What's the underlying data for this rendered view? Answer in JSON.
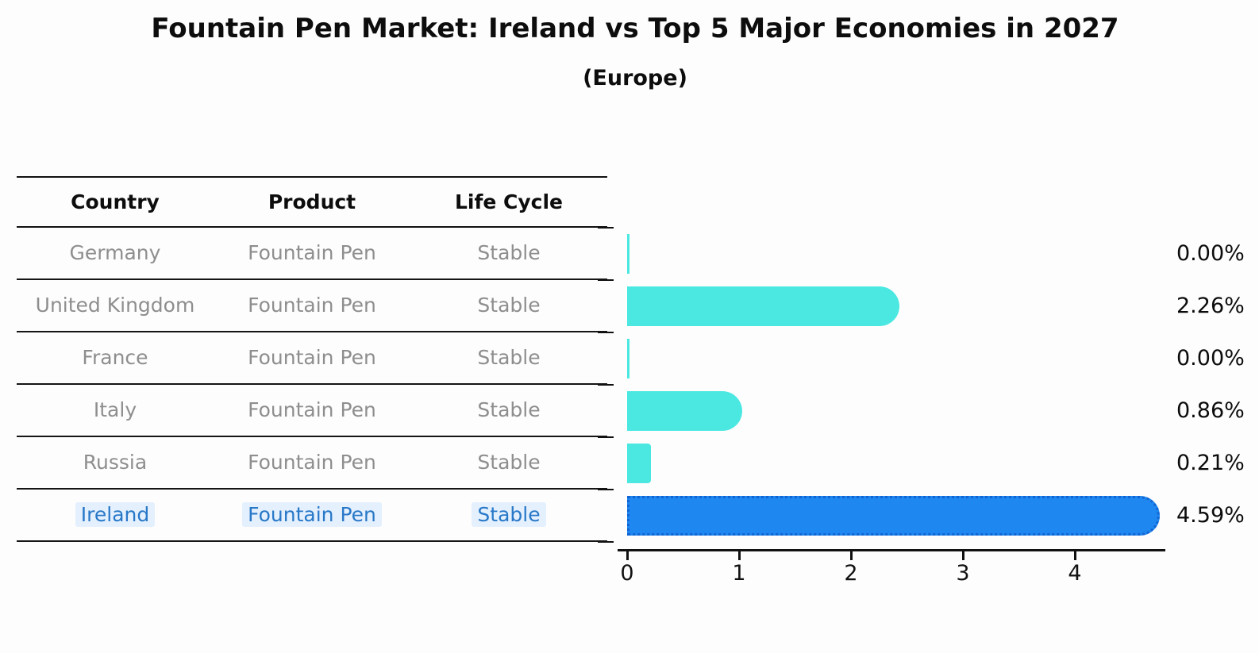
{
  "title": "Fountain Pen Market: Ireland vs Top 5 Major Economies in 2027",
  "subtitle": "(Europe)",
  "table": {
    "headers": [
      "Country",
      "Product",
      "Life Cycle"
    ],
    "rows": [
      {
        "country": "Germany",
        "product": "Fountain Pen",
        "life_cycle": "Stable",
        "highlight": false
      },
      {
        "country": "United Kingdom",
        "product": "Fountain Pen",
        "life_cycle": "Stable",
        "highlight": false
      },
      {
        "country": "France",
        "product": "Fountain Pen",
        "life_cycle": "Stable",
        "highlight": false
      },
      {
        "country": "Italy",
        "product": "Fountain Pen",
        "life_cycle": "Stable",
        "highlight": false
      },
      {
        "country": "Russia",
        "product": "Fountain Pen",
        "life_cycle": "Stable",
        "highlight": false
      },
      {
        "country": "Ireland",
        "product": "Fountain Pen",
        "life_cycle": "Stable",
        "highlight": true
      }
    ]
  },
  "chart_data": {
    "type": "bar",
    "orientation": "horizontal",
    "title": "Fountain Pen Market: Ireland vs Top 5 Major Economies in 2027",
    "subtitle": "(Europe)",
    "categories": [
      "Germany",
      "United Kingdom",
      "France",
      "Italy",
      "Russia",
      "Ireland"
    ],
    "values": [
      0.0,
      2.26,
      0.0,
      0.86,
      0.21,
      4.59
    ],
    "value_labels": [
      "0.00%",
      "2.26%",
      "0.00%",
      "0.86%",
      "0.21%",
      "4.59%"
    ],
    "xlabel": "",
    "ylabel": "",
    "xlim": [
      0,
      4.8
    ],
    "xticks": [
      0,
      1,
      2,
      3,
      4
    ],
    "grid": false,
    "legend": "none",
    "highlight_index": 5,
    "colors": {
      "bar_default": "#4be8e2",
      "bar_highlight": "#1e87f0",
      "bar_highlight_border": "#1264d2",
      "highlight_text": "#2878c8",
      "table_text_gray": "#8e8e8e",
      "axis_black": "#111111"
    }
  }
}
